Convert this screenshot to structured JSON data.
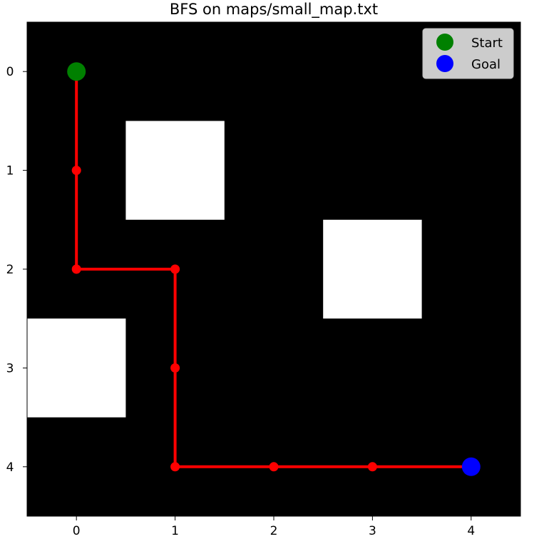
{
  "chart_data": {
    "type": "grid_path",
    "title": "BFS on maps/small_map.txt",
    "grid": {
      "rows": 5,
      "cols": 5,
      "obstacles": [
        {
          "row": 1,
          "col": 1
        },
        {
          "row": 2,
          "col": 3
        },
        {
          "row": 3,
          "col": 0
        }
      ],
      "free_color": "#000000",
      "obstacle_color": "#ffffff"
    },
    "x_ticks": [
      "0",
      "1",
      "2",
      "3",
      "4"
    ],
    "y_ticks": [
      "0",
      "1",
      "2",
      "3",
      "4"
    ],
    "xlim": [
      -0.5,
      4.5
    ],
    "ylim": [
      4.5,
      -0.5
    ],
    "y_axis_inverted": true,
    "path": {
      "color": "#ff0000",
      "points": [
        {
          "x": 0,
          "y": 0
        },
        {
          "x": 0,
          "y": 1
        },
        {
          "x": 0,
          "y": 2
        },
        {
          "x": 1,
          "y": 2
        },
        {
          "x": 1,
          "y": 3
        },
        {
          "x": 1,
          "y": 4
        },
        {
          "x": 2,
          "y": 4
        },
        {
          "x": 3,
          "y": 4
        },
        {
          "x": 4,
          "y": 4
        }
      ]
    },
    "start": {
      "label": "Start",
      "x": 0,
      "y": 0,
      "color": "#008000"
    },
    "goal": {
      "label": "Goal",
      "x": 4,
      "y": 4,
      "color": "#0000ff"
    },
    "legend": {
      "placement": "top-right",
      "entries": [
        {
          "label": "Start",
          "color": "#008000"
        },
        {
          "label": "Goal",
          "color": "#0000ff"
        }
      ]
    },
    "grid_lines": false
  }
}
